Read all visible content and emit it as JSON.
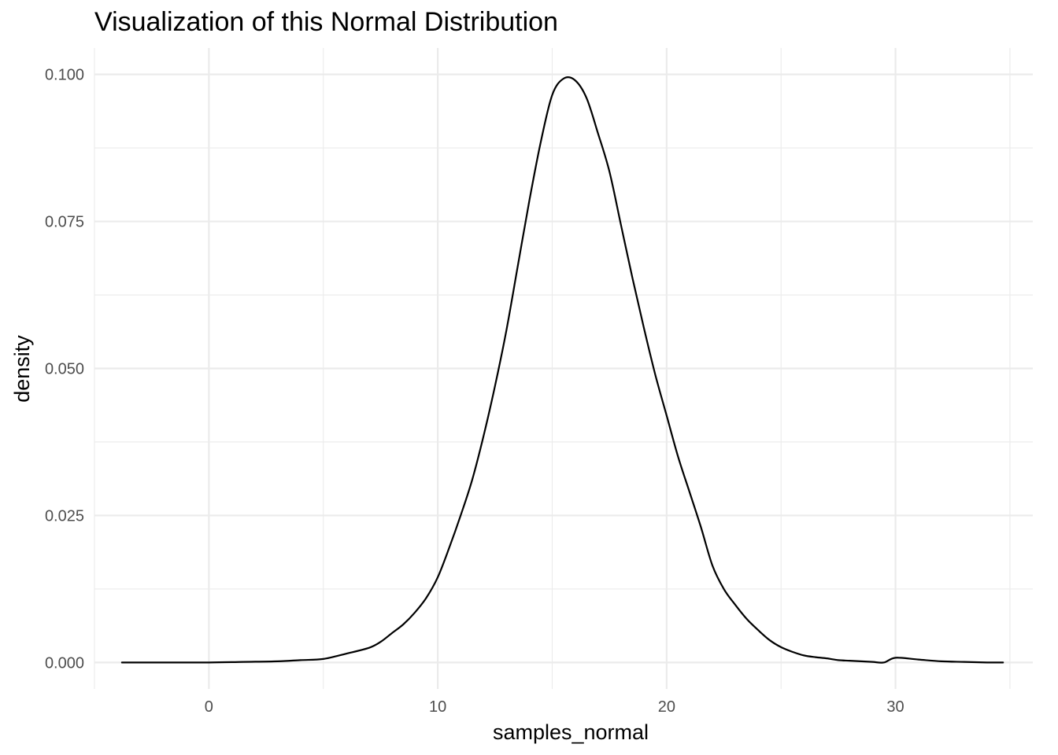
{
  "chart_data": {
    "type": "line",
    "title": "Visualization of this Normal Distribution",
    "xlabel": "samples_normal",
    "ylabel": "density",
    "xlim": [
      -5,
      36
    ],
    "ylim": [
      -0.0045,
      0.1045
    ],
    "x_ticks": [
      0,
      10,
      20,
      30
    ],
    "x_tick_labels": [
      "0",
      "10",
      "20",
      "30"
    ],
    "x_minor_ticks": [
      -5,
      5,
      15,
      25,
      35
    ],
    "y_ticks": [
      0,
      0.025,
      0.05,
      0.075,
      0.1
    ],
    "y_tick_labels": [
      "0.000",
      "0.025",
      "0.050",
      "0.075",
      "0.100"
    ],
    "y_minor_ticks": [
      0.0125,
      0.0375,
      0.0625,
      0.0875
    ],
    "grid": true,
    "legend": "none",
    "series": [
      {
        "color": "#000000",
        "x": [
          -3.8,
          -2,
          0,
          1.5,
          3,
          4,
          5,
          6,
          7,
          7.5,
          8,
          8.5,
          9,
          9.5,
          10,
          10.5,
          11,
          11.5,
          12,
          12.5,
          13,
          13.5,
          14,
          14.5,
          15,
          15.5,
          16,
          16.5,
          17,
          17.5,
          18,
          18.5,
          19,
          19.5,
          20,
          20.5,
          21,
          21.5,
          22,
          22.5,
          23,
          23.5,
          24,
          24.5,
          25,
          25.5,
          26,
          26.5,
          27,
          27.5,
          28,
          28.5,
          29,
          29.5,
          30,
          31,
          32,
          33,
          34,
          34.7
        ],
        "y": [
          0,
          0,
          0,
          0.0001,
          0.0002,
          0.0004,
          0.0006,
          0.0015,
          0.0025,
          0.0035,
          0.005,
          0.0065,
          0.0085,
          0.011,
          0.0145,
          0.0195,
          0.025,
          0.031,
          0.0385,
          0.047,
          0.0565,
          0.0675,
          0.0785,
          0.0885,
          0.0965,
          0.0993,
          0.099,
          0.096,
          0.09,
          0.0835,
          0.0745,
          0.0655,
          0.057,
          0.049,
          0.042,
          0.035,
          0.029,
          0.023,
          0.0165,
          0.0125,
          0.0098,
          0.0074,
          0.0055,
          0.0038,
          0.0026,
          0.0018,
          0.0012,
          0.0009,
          0.0007,
          0.0004,
          0.0003,
          0.0002,
          0.0001,
          0,
          0.0008,
          0.0005,
          0.0002,
          0.0001,
          0,
          0
        ]
      }
    ]
  }
}
